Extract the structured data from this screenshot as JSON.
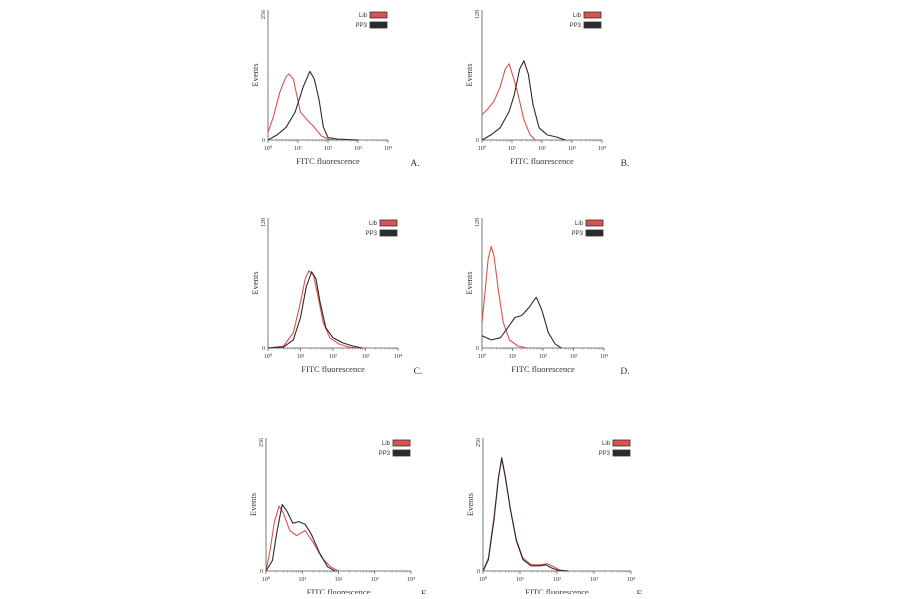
{
  "chart_data": [
    {
      "panel": "A.",
      "type": "line",
      "xlabel": "FITC fluorescence",
      "ylabel": "Events",
      "ymax_label": "256",
      "ylim": [
        0,
        256
      ],
      "xscale": "log",
      "xlim": [
        1,
        10000
      ],
      "xticks": [
        "10⁰",
        "10¹",
        "10²",
        "10³",
        "10⁴"
      ],
      "legend_position": "top-right",
      "series": [
        {
          "name": "Lib",
          "color": "#d9534f",
          "peak_x": 5,
          "peak_y": 130,
          "points": [
            [
              1,
              15
            ],
            [
              1.5,
              45
            ],
            [
              2.5,
              95
            ],
            [
              4,
              125
            ],
            [
              5,
              130
            ],
            [
              7,
              120
            ],
            [
              9,
              90
            ],
            [
              12,
              55
            ],
            [
              20,
              40
            ],
            [
              35,
              25
            ],
            [
              60,
              8
            ],
            [
              100,
              2
            ],
            [
              200,
              0
            ]
          ]
        },
        {
          "name": "PP3",
          "color": "#2b2b2b",
          "peak_x": 25,
          "peak_y": 135,
          "points": [
            [
              1,
              0
            ],
            [
              2,
              10
            ],
            [
              4,
              25
            ],
            [
              8,
              55
            ],
            [
              15,
              105
            ],
            [
              25,
              135
            ],
            [
              35,
              120
            ],
            [
              50,
              80
            ],
            [
              70,
              25
            ],
            [
              100,
              5
            ],
            [
              200,
              2
            ],
            [
              1000,
              0
            ]
          ]
        }
      ]
    },
    {
      "panel": "B.",
      "type": "line",
      "xlabel": "FITC fluorescence",
      "ylabel": "Events",
      "ymax_label": "128",
      "ylim": [
        0,
        128
      ],
      "xscale": "log",
      "xlim": [
        1,
        10000
      ],
      "xticks": [
        "10⁰",
        "10¹",
        "10²",
        "10³",
        "10⁴"
      ],
      "legend_position": "top-right",
      "series": [
        {
          "name": "Lib",
          "color": "#d9534f",
          "peak_x": 8,
          "peak_y": 75,
          "points": [
            [
              1,
              25
            ],
            [
              1.5,
              30
            ],
            [
              2.5,
              38
            ],
            [
              4,
              52
            ],
            [
              6,
              70
            ],
            [
              8,
              75
            ],
            [
              11,
              62
            ],
            [
              15,
              48
            ],
            [
              25,
              20
            ],
            [
              40,
              5
            ],
            [
              60,
              0
            ]
          ]
        },
        {
          "name": "PP3",
          "color": "#2b2b2b",
          "peak_x": 25,
          "peak_y": 78,
          "points": [
            [
              1,
              0
            ],
            [
              2,
              5
            ],
            [
              4,
              12
            ],
            [
              8,
              28
            ],
            [
              12,
              45
            ],
            [
              18,
              70
            ],
            [
              25,
              78
            ],
            [
              35,
              65
            ],
            [
              50,
              35
            ],
            [
              80,
              12
            ],
            [
              150,
              5
            ],
            [
              300,
              3
            ],
            [
              600,
              0
            ]
          ]
        }
      ]
    },
    {
      "panel": "C.",
      "type": "line",
      "xlabel": "FITC fluorescence",
      "ylabel": "Events",
      "ymax_label": "128",
      "ylim": [
        0,
        128
      ],
      "xscale": "log",
      "xlim": [
        1,
        10000
      ],
      "xticks": [
        "10⁰",
        "10¹",
        "10²",
        "10³",
        "10⁴"
      ],
      "legend_position": "top-right",
      "series": [
        {
          "name": "Lib",
          "color": "#d9534f",
          "peak_x": 18,
          "peak_y": 76,
          "points": [
            [
              1,
              0
            ],
            [
              3,
              2
            ],
            [
              6,
              15
            ],
            [
              10,
              45
            ],
            [
              14,
              68
            ],
            [
              18,
              76
            ],
            [
              25,
              72
            ],
            [
              35,
              50
            ],
            [
              50,
              25
            ],
            [
              80,
              10
            ],
            [
              150,
              4
            ],
            [
              300,
              1
            ],
            [
              600,
              0
            ]
          ]
        },
        {
          "name": "PP3",
          "color": "#2b2b2b",
          "peak_x": 22,
          "peak_y": 75,
          "points": [
            [
              1,
              0
            ],
            [
              3,
              1
            ],
            [
              6,
              8
            ],
            [
              10,
              30
            ],
            [
              15,
              60
            ],
            [
              22,
              75
            ],
            [
              30,
              68
            ],
            [
              40,
              45
            ],
            [
              60,
              20
            ],
            [
              100,
              10
            ],
            [
              200,
              5
            ],
            [
              400,
              2
            ],
            [
              800,
              0
            ]
          ]
        }
      ]
    },
    {
      "panel": "D.",
      "type": "line",
      "xlabel": "FITC fluorescence",
      "ylabel": "Events",
      "ymax_label": "128",
      "ylim": [
        0,
        128
      ],
      "xscale": "log",
      "xlim": [
        1,
        10000
      ],
      "xticks": [
        "10⁰",
        "10¹",
        "10²",
        "10³",
        "10⁴"
      ],
      "legend_position": "top-right",
      "series": [
        {
          "name": "Lib",
          "color": "#d9534f",
          "peak_x": 2,
          "peak_y": 100,
          "points": [
            [
              1,
              25
            ],
            [
              1.3,
              60
            ],
            [
              1.6,
              88
            ],
            [
              2,
              100
            ],
            [
              2.5,
              90
            ],
            [
              3.5,
              55
            ],
            [
              5,
              25
            ],
            [
              8,
              8
            ],
            [
              15,
              2
            ],
            [
              30,
              0
            ]
          ]
        },
        {
          "name": "PP3",
          "color": "#2b2b2b",
          "peak_x": 60,
          "peak_y": 50,
          "points": [
            [
              1,
              12
            ],
            [
              2,
              8
            ],
            [
              4,
              10
            ],
            [
              7,
              20
            ],
            [
              12,
              30
            ],
            [
              20,
              32
            ],
            [
              35,
              40
            ],
            [
              60,
              50
            ],
            [
              90,
              38
            ],
            [
              150,
              15
            ],
            [
              250,
              4
            ],
            [
              400,
              0
            ]
          ]
        }
      ]
    },
    {
      "panel": "E.",
      "type": "line",
      "xlabel": "FITC fluorescence",
      "ylabel": "Events",
      "ymax_label": "256",
      "ylim": [
        0,
        256
      ],
      "xscale": "log",
      "xlim": [
        1,
        10000
      ],
      "xticks": [
        "10⁰",
        "10¹",
        "10²",
        "10³",
        "10⁴"
      ],
      "legend_position": "top-right",
      "series": [
        {
          "name": "Lib",
          "color": "#d9534f",
          "peak_x": 2.3,
          "peak_y": 125,
          "points": [
            [
              1,
              0
            ],
            [
              1.3,
              40
            ],
            [
              1.7,
              95
            ],
            [
              2.3,
              125
            ],
            [
              3,
              112
            ],
            [
              4.5,
              78
            ],
            [
              7,
              68
            ],
            [
              12,
              78
            ],
            [
              20,
              55
            ],
            [
              35,
              25
            ],
            [
              60,
              8
            ],
            [
              100,
              0
            ]
          ]
        },
        {
          "name": "PP3",
          "color": "#2b2b2b",
          "peak_x": 2.8,
          "peak_y": 128,
          "points": [
            [
              1,
              0
            ],
            [
              1.5,
              20
            ],
            [
              2,
              75
            ],
            [
              2.8,
              128
            ],
            [
              3.8,
              115
            ],
            [
              5.5,
              92
            ],
            [
              8,
              95
            ],
            [
              12,
              90
            ],
            [
              18,
              70
            ],
            [
              30,
              35
            ],
            [
              50,
              8
            ],
            [
              80,
              0
            ]
          ]
        }
      ]
    },
    {
      "panel": "F.",
      "type": "line",
      "xlabel": "FITC fluorescence",
      "ylabel": "Events",
      "ymax_label": "256",
      "ylim": [
        0,
        256
      ],
      "xscale": "log",
      "xlim": [
        1,
        10000
      ],
      "xticks": [
        "10⁰",
        "10¹",
        "10²",
        "10³",
        "10⁴"
      ],
      "legend_position": "top-right",
      "series": [
        {
          "name": "Lib",
          "color": "#d9534f",
          "peak_x": 3.2,
          "peak_y": 215,
          "points": [
            [
              1,
              0
            ],
            [
              1.4,
              25
            ],
            [
              2,
              105
            ],
            [
              2.6,
              180
            ],
            [
              3.2,
              215
            ],
            [
              4,
              180
            ],
            [
              5.5,
              120
            ],
            [
              8,
              60
            ],
            [
              12,
              25
            ],
            [
              20,
              12
            ],
            [
              35,
              12
            ],
            [
              55,
              14
            ],
            [
              80,
              8
            ],
            [
              120,
              2
            ],
            [
              200,
              0
            ]
          ]
        },
        {
          "name": "PP3",
          "color": "#2b2b2b",
          "peak_x": 3.2,
          "peak_y": 218,
          "points": [
            [
              1,
              0
            ],
            [
              1.4,
              22
            ],
            [
              2,
              100
            ],
            [
              2.6,
              178
            ],
            [
              3.2,
              218
            ],
            [
              4,
              182
            ],
            [
              5.5,
              118
            ],
            [
              8,
              58
            ],
            [
              12,
              22
            ],
            [
              20,
              10
            ],
            [
              35,
              10
            ],
            [
              50,
              12
            ],
            [
              70,
              6
            ],
            [
              110,
              1
            ],
            [
              200,
              0
            ]
          ]
        }
      ]
    }
  ],
  "legend": {
    "lib_label": "Lib",
    "pp3_label": "PP3"
  }
}
